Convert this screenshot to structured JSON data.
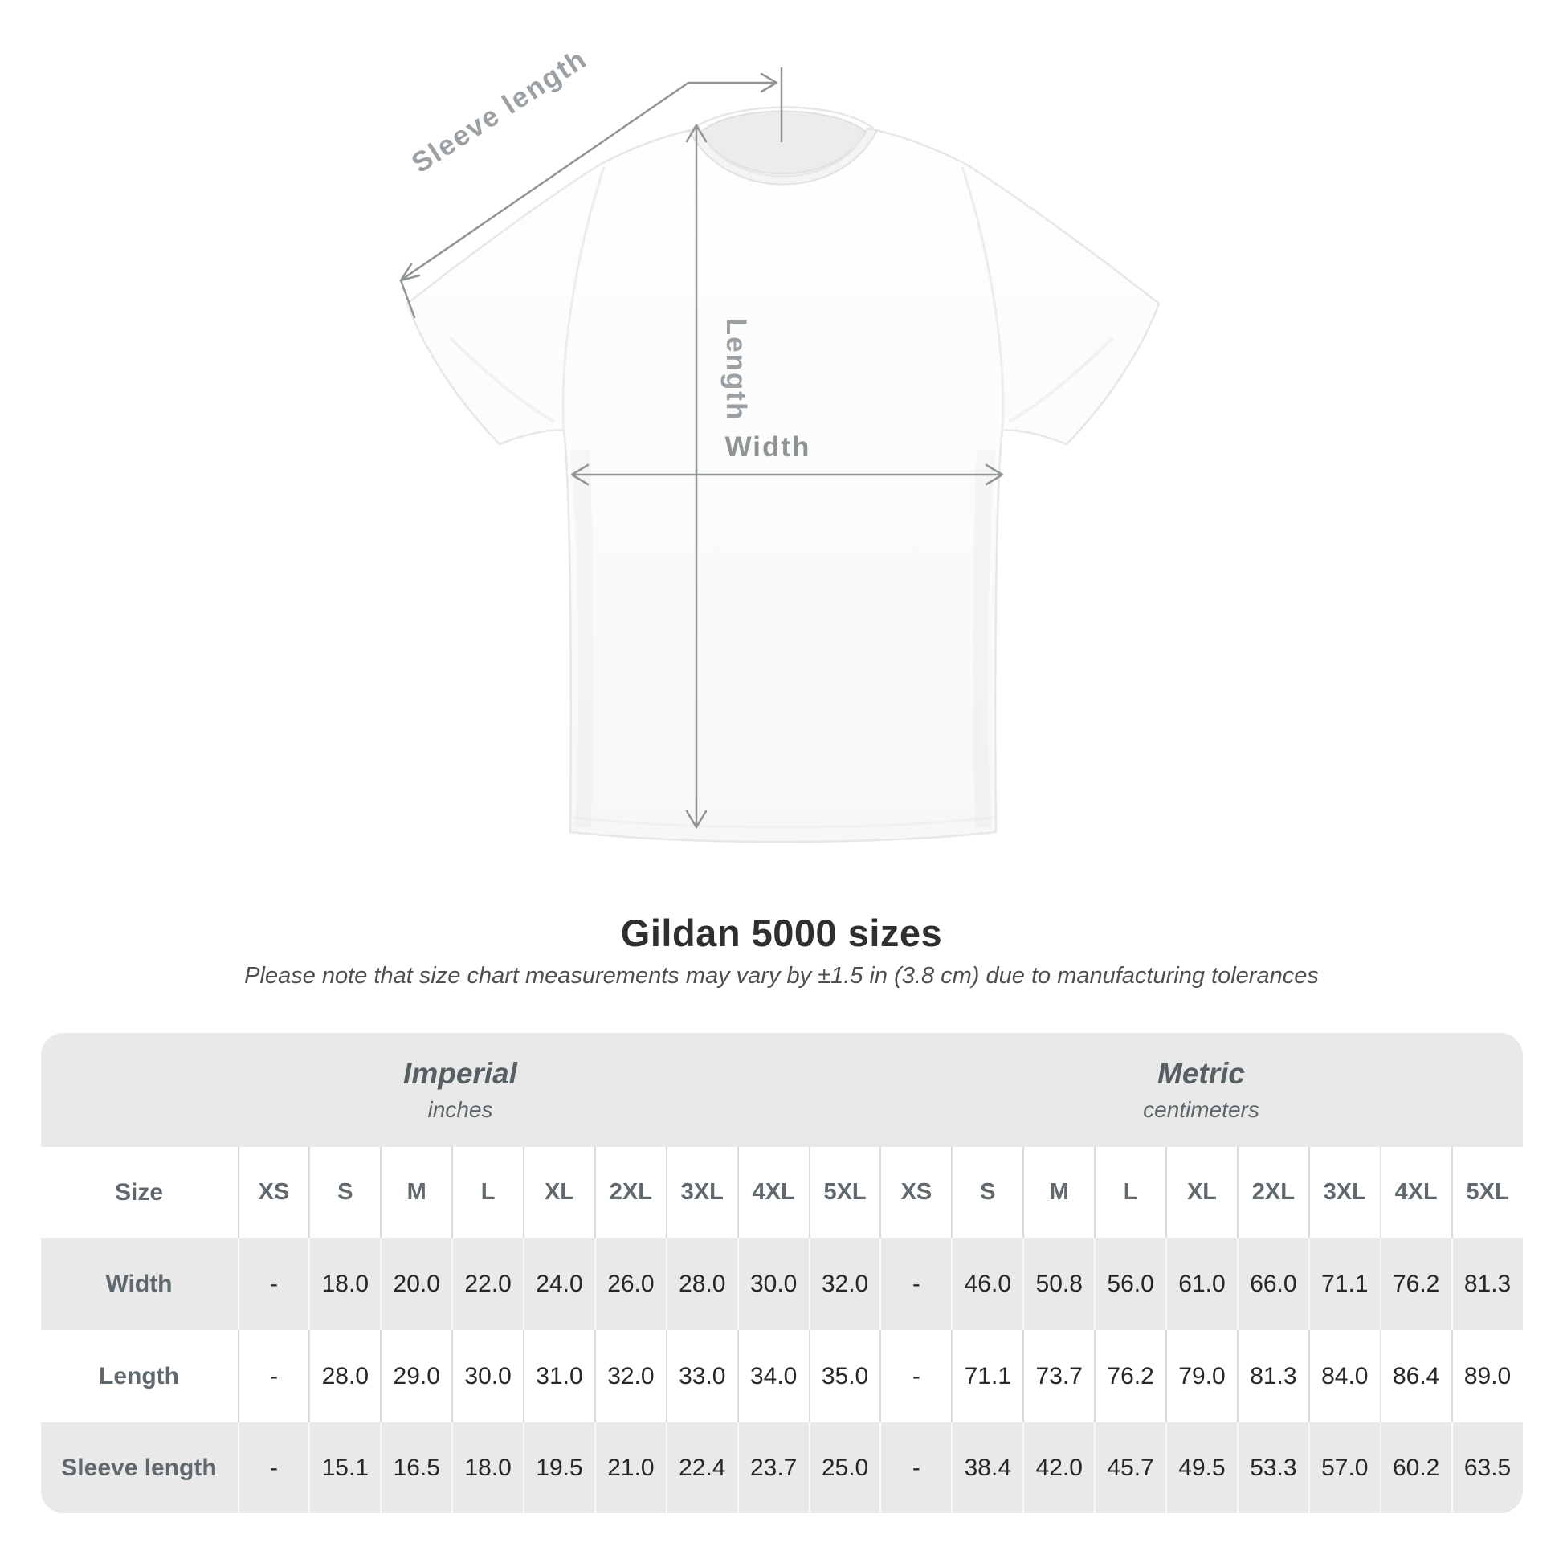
{
  "diagram": {
    "sleeve_length_label": "Sleeve length",
    "length_label": "Length",
    "width_label": "Width"
  },
  "title": "Gildan 5000 sizes",
  "subtitle": "Please note that size chart measurements may vary by ±1.5 in (3.8 cm) due to manufacturing tolerances",
  "chart_data": {
    "type": "table",
    "title": "Gildan 5000 sizes",
    "unit_groups": [
      {
        "name": "Imperial",
        "unit": "inches"
      },
      {
        "name": "Metric",
        "unit": "centimeters"
      }
    ],
    "size_header": {
      "label": "Size",
      "imperial": [
        "XS",
        "S",
        "M",
        "L",
        "XL",
        "2XL",
        "3XL",
        "4XL",
        "5XL"
      ],
      "metric": [
        "XS",
        "S",
        "M",
        "L",
        "XL",
        "2XL",
        "3XL",
        "4XL",
        "5XL"
      ]
    },
    "rows": [
      {
        "label": "Width",
        "imperial": [
          "-",
          "18.0",
          "20.0",
          "22.0",
          "24.0",
          "26.0",
          "28.0",
          "30.0",
          "32.0"
        ],
        "metric": [
          "-",
          "46.0",
          "50.8",
          "56.0",
          "61.0",
          "66.0",
          "71.1",
          "76.2",
          "81.3"
        ]
      },
      {
        "label": "Length",
        "imperial": [
          "-",
          "28.0",
          "29.0",
          "30.0",
          "31.0",
          "32.0",
          "33.0",
          "34.0",
          "35.0"
        ],
        "metric": [
          "-",
          "71.1",
          "73.7",
          "76.2",
          "79.0",
          "81.3",
          "84.0",
          "86.4",
          "89.0"
        ]
      },
      {
        "label": "Sleeve length",
        "imperial": [
          "-",
          "15.1",
          "16.5",
          "18.0",
          "19.5",
          "21.0",
          "22.4",
          "23.7",
          "25.0"
        ],
        "metric": [
          "-",
          "38.4",
          "42.0",
          "45.7",
          "49.5",
          "53.3",
          "57.0",
          "60.2",
          "63.5"
        ]
      }
    ]
  },
  "colors": {
    "table_band": "#e9e9e9",
    "header_text": "#5f686c",
    "value_text": "#272727",
    "measure_line": "#8f9496",
    "measure_label": "#9aa0a3"
  }
}
